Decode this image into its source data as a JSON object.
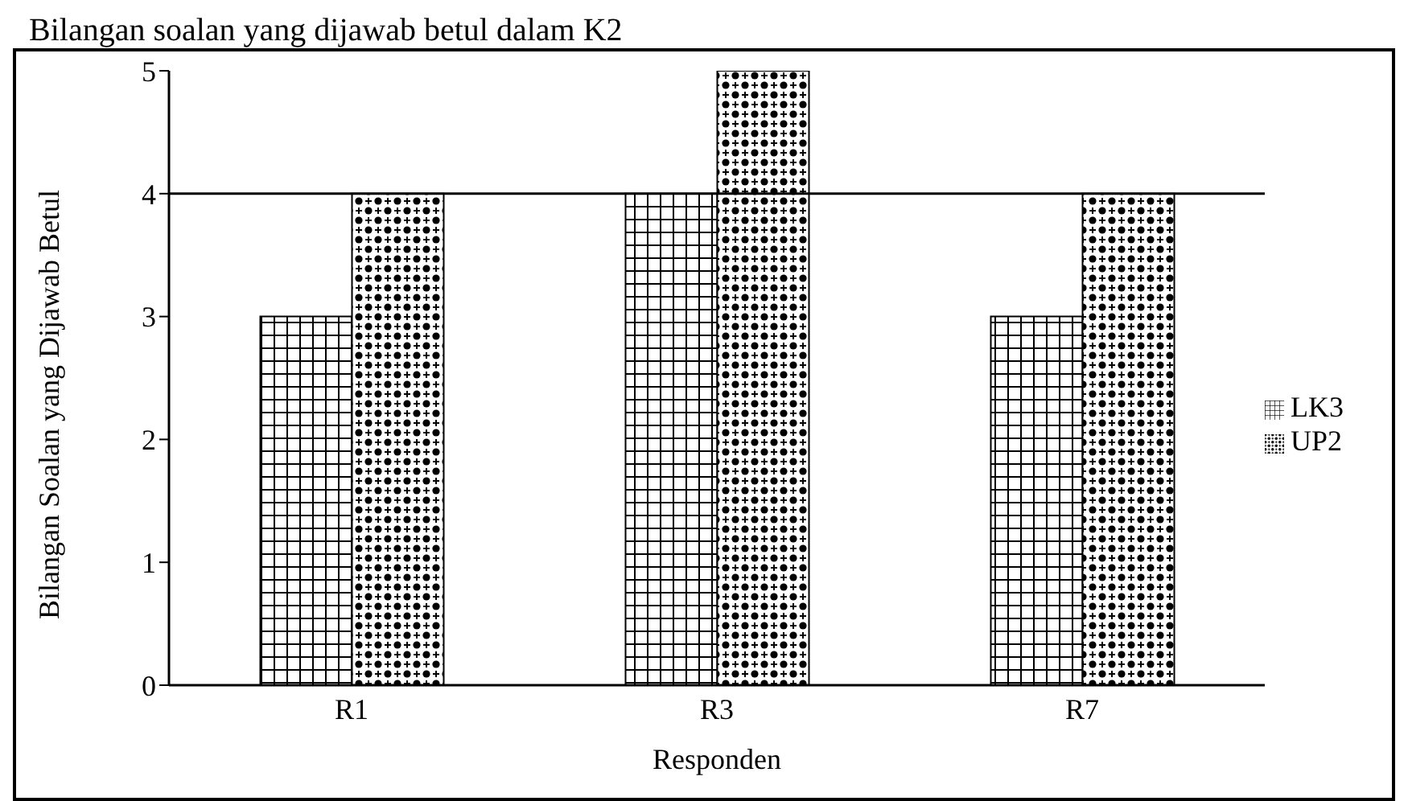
{
  "chart_data": {
    "type": "bar",
    "title": "Bilangan soalan yang dijawab betul dalam K2",
    "xlabel": "Responden",
    "ylabel": "Bilangan Soalan yang Dijawab Betul",
    "categories": [
      "R1",
      "R3",
      "R7"
    ],
    "series": [
      {
        "name": "LK3",
        "color": "#000000",
        "values": [
          3,
          4,
          3
        ]
      },
      {
        "name": "UP2",
        "color": "#000000",
        "values": [
          4,
          5,
          4
        ]
      }
    ],
    "ylim": [
      0,
      5
    ],
    "yticks": [
      0,
      1,
      2,
      3,
      4,
      5
    ],
    "legend": "right",
    "ref_lines": [
      {
        "axis": "y",
        "value": 4,
        "color": "#000000"
      }
    ]
  }
}
